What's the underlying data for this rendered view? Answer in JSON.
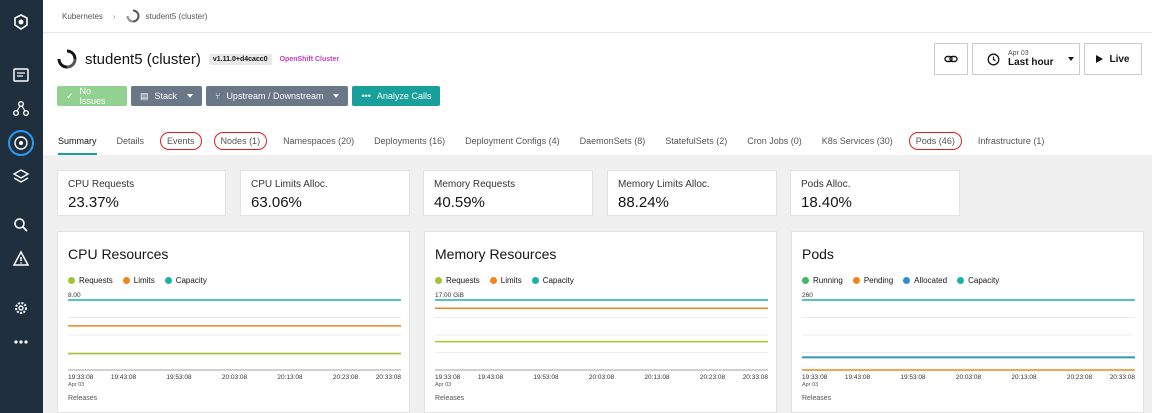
{
  "breadcrumb": {
    "root": "Kubernetes",
    "current": "student5 (cluster)"
  },
  "header": {
    "title": "student5 (cluster)",
    "version": "v1.11.0+d4cacc0",
    "cluster_type": "OpenShift Cluster"
  },
  "buttons": {
    "no_issues": "No Issues",
    "stack": "Stack",
    "upstream": "Upstream / Downstream",
    "analyze": "Analyze Calls"
  },
  "time": {
    "date": "Apr 03",
    "range": "Last hour",
    "live": "Live"
  },
  "tabs": [
    "Summary",
    "Details",
    "Events",
    "Nodes (1)",
    "Namespaces (20)",
    "Deployments (16)",
    "Deployment Configs (4)",
    "DaemonSets (8)",
    "StatefulSets (2)",
    "Cron Jobs (0)",
    "K8s Services (30)",
    "Pods (46)",
    "Infrastructure (1)"
  ],
  "stats": [
    {
      "label": "CPU Requests",
      "value": "23.37%"
    },
    {
      "label": "CPU Limits Alloc.",
      "value": "63.06%"
    },
    {
      "label": "Memory Requests",
      "value": "40.59%"
    },
    {
      "label": "Memory Limits Alloc.",
      "value": "88.24%"
    },
    {
      "label": "Pods Alloc.",
      "value": "18.40%"
    }
  ],
  "colors": {
    "requests": "#a2c431",
    "limits": "#f0861e",
    "capacity": "#1cb0a8",
    "running": "#3fb868",
    "pending": "#f0861e",
    "allocated": "#2c91c9"
  },
  "releases_label": "Releases",
  "chart_data": [
    {
      "type": "line",
      "title": "CPU Resources",
      "x": [
        "19:33:08",
        "19:43:08",
        "19:53:08",
        "20:03:08",
        "20:13:08",
        "20:23:08",
        "20:33:08"
      ],
      "x_sub": "Apr 03",
      "ymax_label": "8.00",
      "ylim": [
        0,
        8
      ],
      "series": [
        {
          "name": "Requests",
          "color": "#a2c431",
          "values": [
            1.87,
            1.87,
            1.87,
            1.87,
            1.87,
            1.87,
            1.87
          ]
        },
        {
          "name": "Limits",
          "color": "#f0861e",
          "values": [
            5.04,
            5.04,
            5.04,
            5.04,
            5.04,
            5.04,
            5.04
          ]
        },
        {
          "name": "Capacity",
          "color": "#1cb0a8",
          "values": [
            8,
            8,
            8,
            8,
            8,
            8,
            8
          ]
        }
      ]
    },
    {
      "type": "line",
      "title": "Memory Resources",
      "x": [
        "19:33:08",
        "19:43:08",
        "19:53:08",
        "20:03:08",
        "20:13:08",
        "20:23:08",
        "20:33:08"
      ],
      "x_sub": "Apr 03",
      "ymax_label": "17.00 GiB",
      "ylim": [
        0,
        17
      ],
      "series": [
        {
          "name": "Requests",
          "color": "#a2c431",
          "values": [
            6.9,
            6.9,
            6.9,
            6.9,
            6.9,
            6.9,
            6.9
          ]
        },
        {
          "name": "Limits",
          "color": "#f0861e",
          "values": [
            15,
            15,
            15,
            15,
            15,
            15,
            15
          ]
        },
        {
          "name": "Capacity",
          "color": "#1cb0a8",
          "values": [
            17,
            17,
            17,
            17,
            17,
            17,
            17
          ]
        }
      ]
    },
    {
      "type": "line",
      "title": "Pods",
      "x": [
        "19:33:08",
        "19:43:08",
        "19:53:08",
        "20:03:08",
        "20:13:08",
        "20:23:08",
        "20:33:08"
      ],
      "x_sub": "Apr 03",
      "ymax_label": "260",
      "ylim": [
        0,
        260
      ],
      "series": [
        {
          "name": "Running",
          "color": "#3fb868",
          "values": [
            46,
            46,
            46,
            46,
            46,
            46,
            46
          ]
        },
        {
          "name": "Pending",
          "color": "#f0861e",
          "values": [
            0,
            0,
            0,
            0,
            0,
            0,
            0
          ]
        },
        {
          "name": "Allocated",
          "color": "#2c91c9",
          "values": [
            47.8,
            47.8,
            47.8,
            47.8,
            47.8,
            47.8,
            47.8
          ]
        },
        {
          "name": "Capacity",
          "color": "#1cb0a8",
          "values": [
            260,
            260,
            260,
            260,
            260,
            260,
            260
          ]
        }
      ]
    }
  ]
}
